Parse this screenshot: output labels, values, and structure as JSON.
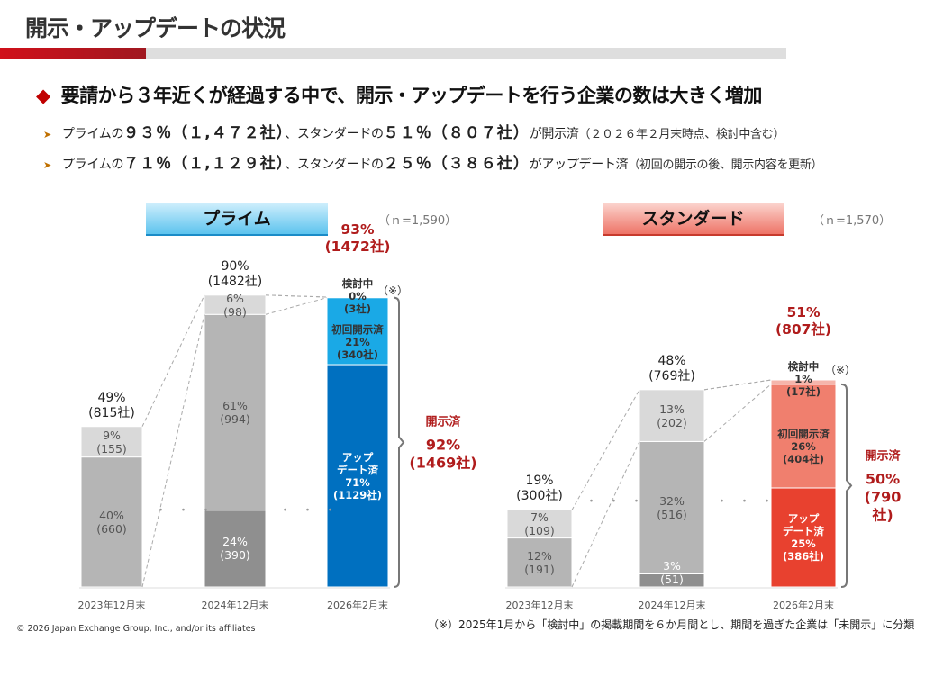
{
  "header": {
    "title": "開示・アップデートの状況",
    "headline": "要請から３年近くが経過する中で、開示・アップデートを行う企業の数は大きく増加",
    "headline_icon": "diamond-icon",
    "accent_color": "#c00000",
    "bullets": [
      {
        "pre": "プライムの",
        "b1": "９３％（１,４７２社）",
        "mid": "、スタンダードの",
        "b2": "５１％（８０７社）",
        "post": "が開示済",
        "paren": "（２０２６年２月末時点、検討中含む）"
      },
      {
        "pre": "プライムの",
        "b1": "７１％（１,１２９社）",
        "mid": "、スタンダードの",
        "b2": "２５％（３８６社）",
        "post": "がアップデート済",
        "paren": "（初回の開示の後、開示内容を更新）"
      }
    ]
  },
  "chart_data": [
    {
      "type": "bar",
      "stacked": true,
      "title": "プライム",
      "n_label": "（ｎ=1,590）",
      "categories": [
        "2023年12月末",
        "2024年12月末",
        "2026年2月末"
      ],
      "bars": [
        {
          "total_pct": "49%",
          "total_count": "(815社)",
          "highlight": false,
          "segments": [
            {
              "value": 660,
              "label": "40%\n(660)",
              "color": "#b5b5b5"
            },
            {
              "value": 155,
              "label": "9%\n(155)",
              "color": "#d9d9d9"
            }
          ]
        },
        {
          "total_pct": "90%",
          "total_count": "(1482社)",
          "highlight": false,
          "segments": [
            {
              "value": 390,
              "label": "24%\n(390)",
              "color": "#8f8f8f"
            },
            {
              "value": 994,
              "label": "61%\n(994)",
              "color": "#b5b5b5"
            },
            {
              "value": 98,
              "label": "6%\n(98)",
              "color": "#d9d9d9"
            }
          ]
        },
        {
          "total_pct": "93%",
          "total_count": "(1472社)",
          "highlight": true,
          "segments": [
            {
              "value": 1129,
              "label": "アップ\nデート済\n71%\n(1129社)",
              "color": "#0070c0"
            },
            {
              "value": 340,
              "label": "初回開示済\n21%\n(340社)",
              "color": "#1aa9e6"
            },
            {
              "value": 3,
              "label": "検討中\n0%\n(3社)",
              "color": "#1aa9e6"
            }
          ]
        }
      ],
      "note_mark": "（※）",
      "bracket": {
        "label": "開示済",
        "pct": "92%",
        "count": "(1469社)"
      }
    },
    {
      "type": "bar",
      "stacked": true,
      "title": "スタンダード",
      "n_label": "（ｎ=1,570）",
      "categories": [
        "2023年12月末",
        "2024年12月末",
        "2026年2月末"
      ],
      "bars": [
        {
          "total_pct": "19%",
          "total_count": "(300社)",
          "highlight": false,
          "segments": [
            {
              "value": 191,
              "label": "12%\n(191)",
              "color": "#b5b5b5"
            },
            {
              "value": 109,
              "label": "7%\n(109)",
              "color": "#d9d9d9"
            }
          ]
        },
        {
          "total_pct": "48%",
          "total_count": "(769社)",
          "highlight": false,
          "segments": [
            {
              "value": 51,
              "label": "3%\n(51)",
              "color": "#8f8f8f"
            },
            {
              "value": 516,
              "label": "32%\n(516)",
              "color": "#b5b5b5"
            },
            {
              "value": 202,
              "label": "13%\n(202)",
              "color": "#d9d9d9"
            }
          ]
        },
        {
          "total_pct": "51%",
          "total_count": "(807社)",
          "highlight": true,
          "segments": [
            {
              "value": 386,
              "label": "アップ\nデート済\n25%\n(386社)",
              "color": "#e8412f"
            },
            {
              "value": 404,
              "label": "初回開示済\n26%\n(404社)",
              "color": "#f07f6e"
            },
            {
              "value": 17,
              "label": "検討中\n1%\n(17社)",
              "color": "#f5b5ab"
            }
          ]
        }
      ],
      "note_mark": "（※）",
      "bracket": {
        "label": "開示済",
        "pct": "50%",
        "count": "(790社)"
      }
    }
  ],
  "footer": {
    "copyright": "© 2026 Japan Exchange Group, Inc., and/or its affiliates",
    "note": "（※）2025年1月から「検討中」の掲載期間を６か月間とし、期間を過ぎた企業は「未開示」に分類"
  }
}
